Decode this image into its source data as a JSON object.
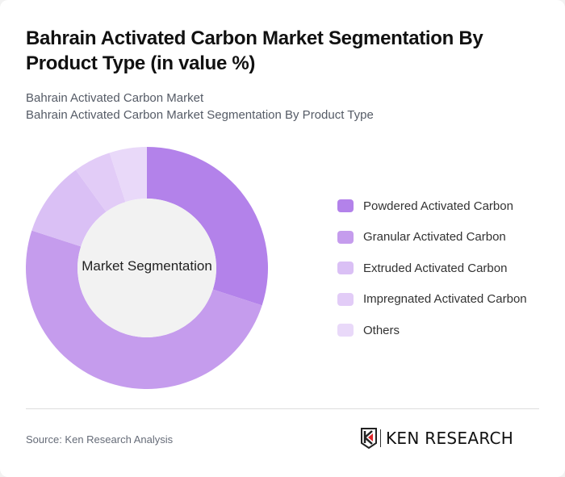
{
  "header": {
    "title": "Bahrain Activated Carbon Market Segmentation By Product Type (in value %)",
    "subtitle_1": "Bahrain Activated Carbon Market",
    "subtitle_2": "Bahrain Activated Carbon Market Segmentation By Product Type"
  },
  "chart": {
    "center_label": "Market Segmentation"
  },
  "legend": [
    {
      "label": "Powdered Activated Carbon",
      "color": "#b382ea"
    },
    {
      "label": "Granular Activated Carbon",
      "color": "#c59ced"
    },
    {
      "label": "Extruded Activated Carbon",
      "color": "#dac0f5"
    },
    {
      "label": "Impregnated Activated Carbon",
      "color": "#e2ccf7"
    },
    {
      "label": "Others",
      "color": "#e9d9f9"
    }
  ],
  "footer": {
    "source": "Source: Ken Research Analysis",
    "logo_text": "KEN RESEARCH"
  },
  "chart_data": {
    "type": "pie",
    "variant": "donut",
    "title": "Bahrain Activated Carbon Market Segmentation By Product Type (in value %)",
    "center_label": "Market Segmentation",
    "categories": [
      "Powdered Activated Carbon",
      "Granular Activated Carbon",
      "Extruded Activated Carbon",
      "Impregnated Activated Carbon",
      "Others"
    ],
    "values": [
      30,
      50,
      10,
      5,
      5
    ],
    "colors": [
      "#b382ea",
      "#c59ced",
      "#dac0f5",
      "#e2ccf7",
      "#e9d9f9"
    ],
    "unit": "%",
    "legend_position": "right"
  }
}
